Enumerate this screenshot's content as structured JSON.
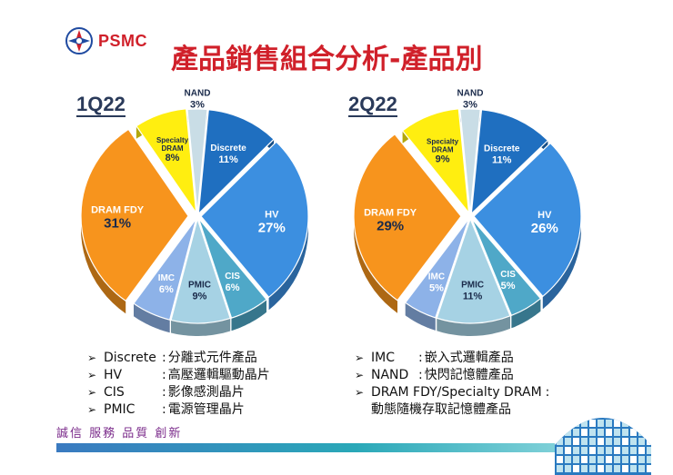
{
  "brand": {
    "name": "PSMC",
    "motto": "誠信  服務  品質  創新"
  },
  "title": "產品銷售組合分析-產品別",
  "colors": {
    "accent": "#d0202a",
    "NAND": "#c9dde6",
    "Discrete": "#1f6fc0",
    "HV": "#3c8fe0",
    "CIS": "#4fa8c8",
    "PMIC": "#a6d2e4",
    "IMC": "#8db2e8",
    "DRAM FDY": "#f7941d",
    "Specialty DRAM": "#ffee10"
  },
  "chart_data": [
    {
      "type": "pie",
      "title": "1Q22",
      "categories": [
        "NAND",
        "Discrete",
        "HV",
        "CIS",
        "PMIC",
        "IMC",
        "DRAM FDY",
        "Specialty DRAM"
      ],
      "values": [
        3,
        11,
        27,
        6,
        9,
        6,
        31,
        8
      ],
      "labels": [
        {
          "name": "NAND",
          "pct": "3%"
        },
        {
          "name": "Discrete",
          "pct": "11%"
        },
        {
          "name": "HV",
          "pct": "27%"
        },
        {
          "name": "CIS",
          "pct": "6%"
        },
        {
          "name": "PMIC",
          "pct": "9%"
        },
        {
          "name": "IMC",
          "pct": "6%"
        },
        {
          "name": "DRAM FDY",
          "pct": "31%"
        },
        {
          "name": "Specialty DRAM",
          "pct": "8%"
        }
      ]
    },
    {
      "type": "pie",
      "title": "2Q22",
      "categories": [
        "NAND",
        "Discrete",
        "HV",
        "CIS",
        "PMIC",
        "IMC",
        "DRAM FDY",
        "Specialty DRAM"
      ],
      "values": [
        3,
        11,
        26,
        5,
        11,
        5,
        29,
        9
      ],
      "labels": [
        {
          "name": "NAND",
          "pct": "3%"
        },
        {
          "name": "Discrete",
          "pct": "11%"
        },
        {
          "name": "HV",
          "pct": "26%"
        },
        {
          "name": "CIS",
          "pct": "5%"
        },
        {
          "name": "PMIC",
          "pct": "11%"
        },
        {
          "name": "IMC",
          "pct": "5%"
        },
        {
          "name": "DRAM FDY",
          "pct": "29%"
        },
        {
          "name": "Specialty DRAM",
          "pct": "9%"
        }
      ]
    }
  ],
  "legend_left": [
    {
      "key": "Discrete",
      "desc": "分離式元件產品"
    },
    {
      "key": "HV",
      "desc": "高壓邏輯驅動晶片"
    },
    {
      "key": "CIS",
      "desc": "影像感測晶片"
    },
    {
      "key": "PMIC",
      "desc": "電源管理晶片"
    }
  ],
  "legend_right": [
    {
      "key": "IMC",
      "desc": "嵌入式邏輯產品"
    },
    {
      "key": "NAND",
      "desc": "快閃記憶體產品"
    },
    {
      "key": "DRAM FDY/Specialty DRAM",
      "desc": ""
    }
  ],
  "legend_right_extra": "動態隨機存取記憶體產品"
}
